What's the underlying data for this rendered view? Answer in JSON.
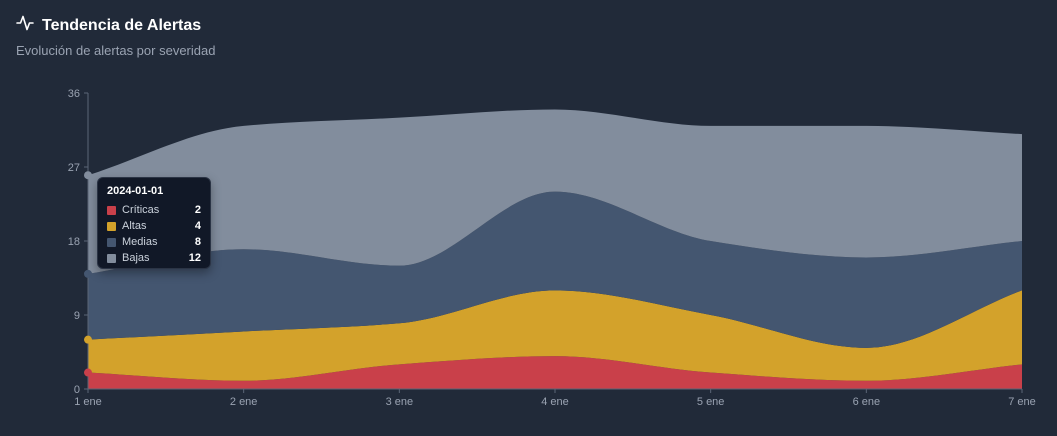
{
  "header": {
    "title": "Tendencia de Alertas",
    "subtitle": "Evolución de alertas por severidad",
    "icon": "activity-icon"
  },
  "chart_data": {
    "type": "area",
    "stacked": true,
    "x": [
      "1 ene",
      "2 ene",
      "3 ene",
      "4 ene",
      "5 ene",
      "6 ene",
      "7 ene"
    ],
    "ylim": [
      0,
      36
    ],
    "yticks": [
      0,
      9,
      18,
      27,
      36
    ],
    "series": [
      {
        "name": "Críticas",
        "color": "#c9404a",
        "values": [
          2,
          1,
          3,
          4,
          2,
          1,
          3
        ]
      },
      {
        "name": "Altas",
        "color": "#d3a22b",
        "values": [
          4,
          6,
          5,
          8,
          7,
          4,
          9
        ]
      },
      {
        "name": "Medias",
        "color": "#445670",
        "values": [
          8,
          10,
          7,
          12,
          9,
          11,
          6
        ]
      },
      {
        "name": "Bajas",
        "color": "#828d9d",
        "values": [
          12,
          15,
          18,
          10,
          14,
          16,
          13
        ]
      }
    ]
  },
  "tooltip": {
    "date": "2024-01-01",
    "rows": [
      {
        "label": "Críticas",
        "value": "2",
        "color": "#c9404a"
      },
      {
        "label": "Altas",
        "value": "4",
        "color": "#d3a22b"
      },
      {
        "label": "Medias",
        "value": "8",
        "color": "#445670"
      },
      {
        "label": "Bajas",
        "value": "12",
        "color": "#828d9d"
      }
    ]
  }
}
